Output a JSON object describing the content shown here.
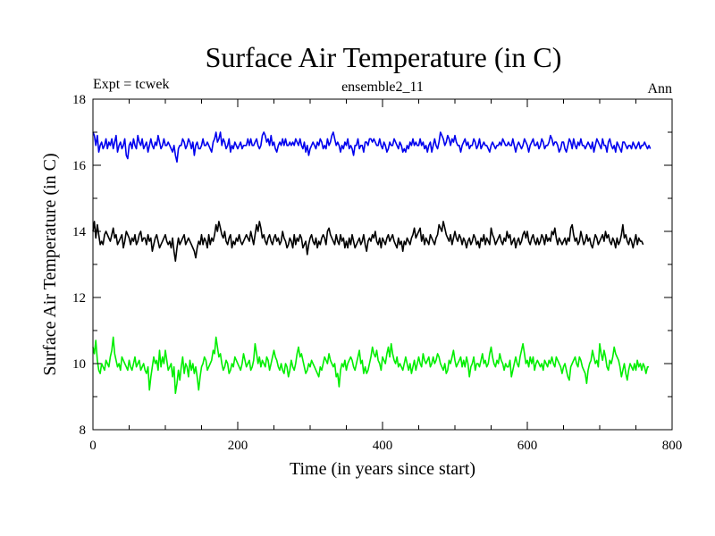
{
  "chart_data": {
    "type": "line",
    "title": "Surface Air Temperature (in C)",
    "subtitle_left": "Expt = tcwek",
    "subtitle_center": "ensemble2_11",
    "subtitle_right": "Ann",
    "xlabel": "Time (in years since start)",
    "ylabel": "Surface Air Temperature (in C)",
    "xlim": [
      0,
      800
    ],
    "ylim": [
      8,
      18
    ],
    "x_ticks": [
      0,
      200,
      400,
      600,
      800
    ],
    "y_ticks": [
      8,
      10,
      12,
      14,
      16,
      18
    ],
    "x_step": 2,
    "series": [
      {
        "name": "blue",
        "color": "#0000ee",
        "values": [
          17.0,
          16.9,
          16.6,
          16.9,
          16.4,
          16.6,
          16.7,
          16.5,
          16.6,
          16.8,
          16.5,
          16.7,
          16.6,
          16.8,
          16.5,
          16.7,
          16.9,
          16.4,
          16.6,
          16.7,
          16.5,
          16.6,
          16.8,
          16.3,
          16.2,
          16.6,
          16.7,
          16.5,
          16.8,
          16.6,
          16.5,
          16.9,
          16.7,
          16.6,
          16.8,
          16.5,
          16.6,
          16.7,
          16.4,
          16.6,
          16.8,
          16.6,
          16.5,
          16.7,
          16.6,
          16.9,
          16.7,
          16.5,
          16.6,
          16.8,
          16.6,
          16.6,
          16.7,
          16.6,
          16.5,
          16.4,
          16.6,
          16.3,
          16.1,
          16.5,
          16.6,
          16.6,
          16.8,
          16.7,
          16.5,
          16.6,
          16.8,
          16.7,
          16.5,
          16.7,
          16.3,
          16.6,
          16.7,
          16.5,
          16.5,
          16.6,
          16.8,
          16.6,
          16.6,
          16.7,
          16.6,
          16.5,
          16.4,
          16.7,
          16.8,
          17.0,
          16.7,
          16.8,
          17.0,
          16.6,
          16.8,
          16.7,
          16.5,
          16.6,
          16.8,
          16.4,
          16.6,
          16.5,
          16.7,
          16.6,
          16.5,
          16.6,
          16.7,
          16.5,
          16.6,
          16.6,
          16.6,
          16.8,
          16.6,
          16.8,
          16.6,
          16.6,
          16.7,
          16.8,
          16.6,
          16.5,
          16.6,
          16.9,
          17.0,
          16.9,
          16.7,
          16.8,
          16.6,
          16.9,
          16.6,
          16.7,
          16.5,
          16.4,
          16.6,
          16.7,
          16.6,
          16.8,
          16.6,
          16.8,
          16.6,
          16.6,
          16.7,
          16.6,
          16.7,
          16.6,
          16.8,
          16.7,
          16.6,
          16.8,
          16.6,
          16.5,
          16.7,
          16.4,
          16.6,
          16.3,
          16.5,
          16.6,
          16.7,
          16.6,
          16.5,
          16.7,
          16.6,
          16.8,
          16.7,
          16.5,
          16.6,
          16.5,
          16.8,
          16.6,
          16.7,
          16.9,
          17.0,
          16.8,
          16.6,
          16.7,
          16.6,
          16.4,
          16.6,
          16.5,
          16.7,
          16.6,
          16.8,
          16.5,
          16.6,
          16.5,
          16.3,
          16.6,
          16.6,
          16.8,
          16.5,
          16.6,
          16.6,
          16.4,
          16.7,
          16.7,
          16.6,
          16.8,
          16.8,
          16.7,
          16.8,
          16.7,
          16.6,
          16.6,
          16.8,
          16.6,
          16.5,
          16.7,
          16.6,
          16.4,
          16.5,
          16.7,
          16.6,
          16.6,
          16.8,
          16.7,
          16.6,
          16.5,
          16.7,
          16.6,
          16.4,
          16.5,
          16.4,
          16.6,
          16.5,
          16.7,
          16.6,
          16.8,
          16.6,
          16.7,
          16.6,
          16.6,
          16.8,
          16.6,
          16.7,
          16.5,
          16.6,
          16.4,
          16.6,
          16.7,
          16.4,
          16.6,
          16.8,
          16.6,
          16.5,
          16.7,
          17.0,
          16.9,
          16.8,
          16.6,
          16.7,
          16.9,
          16.8,
          16.6,
          16.8,
          16.7,
          16.9,
          16.7,
          16.6,
          16.6,
          16.4,
          16.6,
          16.7,
          16.8,
          16.6,
          16.7,
          16.5,
          16.6,
          16.6,
          16.8,
          16.7,
          16.5,
          16.6,
          16.8,
          16.5,
          16.6,
          16.7,
          16.6,
          16.6,
          16.5,
          16.4,
          16.6,
          16.7,
          16.6,
          16.5,
          16.6,
          16.6,
          16.7,
          16.6,
          16.8,
          16.7,
          16.6,
          16.6,
          16.7,
          16.6,
          16.6,
          16.8,
          16.6,
          16.4,
          16.6,
          16.7,
          16.6,
          16.5,
          16.6,
          16.8,
          16.7,
          16.6,
          16.4,
          16.6,
          16.7,
          16.8,
          16.6,
          16.6,
          16.7,
          16.5,
          16.6,
          16.8,
          16.7,
          16.5,
          16.6,
          16.6,
          16.7,
          16.9,
          16.8,
          16.6,
          16.7,
          16.7,
          16.6,
          16.4,
          16.5,
          16.7,
          16.7,
          16.5,
          16.4,
          16.6,
          16.8,
          16.7,
          16.5,
          16.8,
          16.6,
          16.5,
          16.7,
          16.6,
          16.8,
          16.6,
          16.6,
          16.5,
          16.6,
          16.7,
          16.6,
          16.5,
          16.7,
          16.4,
          16.6,
          16.8,
          16.7,
          16.6,
          16.5,
          16.8,
          16.6,
          16.6,
          16.4,
          16.7,
          16.8,
          16.6,
          16.5,
          16.6,
          16.4,
          16.7,
          16.6,
          16.5,
          16.4,
          16.7,
          16.7,
          16.6,
          16.5,
          16.6,
          16.6,
          16.5,
          16.7,
          16.6,
          16.5,
          16.6,
          16.7,
          16.5,
          16.6,
          16.6,
          16.7,
          16.6,
          16.5,
          16.6,
          16.5
        ]
      },
      {
        "name": "black",
        "color": "#000000",
        "values": [
          14.0,
          14.3,
          13.8,
          14.2,
          13.9,
          13.6,
          13.7,
          13.6,
          13.9,
          14.0,
          13.9,
          13.8,
          13.7,
          13.9,
          14.1,
          13.8,
          13.9,
          13.6,
          13.7,
          13.8,
          13.9,
          13.5,
          13.7,
          14.0,
          13.9,
          13.8,
          13.6,
          13.8,
          13.7,
          13.9,
          13.6,
          13.7,
          13.9,
          14.0,
          13.7,
          13.8,
          13.8,
          13.6,
          13.9,
          13.7,
          13.8,
          13.4,
          13.6,
          13.8,
          13.9,
          13.7,
          13.5,
          13.6,
          13.7,
          13.8,
          13.9,
          13.7,
          13.6,
          13.7,
          13.5,
          13.8,
          13.4,
          13.1,
          13.5,
          13.8,
          13.6,
          13.7,
          13.8,
          13.9,
          13.6,
          13.7,
          13.8,
          13.7,
          13.6,
          13.5,
          13.4,
          13.2,
          13.5,
          13.7,
          13.6,
          13.9,
          13.6,
          13.8,
          13.7,
          13.5,
          13.9,
          13.6,
          13.8,
          13.7,
          13.9,
          14.2,
          14.0,
          14.3,
          14.1,
          13.9,
          13.8,
          14.0,
          13.7,
          13.6,
          13.8,
          13.9,
          13.5,
          13.7,
          13.6,
          13.8,
          13.7,
          13.9,
          13.7,
          13.6,
          13.7,
          13.8,
          13.9,
          13.8,
          13.7,
          14.0,
          13.8,
          13.6,
          13.9,
          14.2,
          14.0,
          14.3,
          14.1,
          13.8,
          13.9,
          13.7,
          13.6,
          13.8,
          13.9,
          13.7,
          13.6,
          13.8,
          13.9,
          13.7,
          13.8,
          13.6,
          13.7,
          14.0,
          13.8,
          13.7,
          13.5,
          13.6,
          13.8,
          13.7,
          13.5,
          13.9,
          13.6,
          13.8,
          13.7,
          13.9,
          13.8,
          13.5,
          13.6,
          13.7,
          13.3,
          13.6,
          13.8,
          13.9,
          13.7,
          13.6,
          13.8,
          13.5,
          13.7,
          13.6,
          13.8,
          13.9,
          13.8,
          13.6,
          14.0,
          14.1,
          13.9,
          13.8,
          13.7,
          13.6,
          13.9,
          13.7,
          13.6,
          13.9,
          13.7,
          13.8,
          13.5,
          13.7,
          13.5,
          13.8,
          13.6,
          13.9,
          13.7,
          13.5,
          13.6,
          13.7,
          13.8,
          13.6,
          13.7,
          13.9,
          13.6,
          13.4,
          13.7,
          13.8,
          13.7,
          13.9,
          13.8,
          14.0,
          13.7,
          13.6,
          13.8,
          13.5,
          13.8,
          13.7,
          13.6,
          13.8,
          13.9,
          13.7,
          13.8,
          13.9,
          13.7,
          13.6,
          13.5,
          13.8,
          13.6,
          13.7,
          13.4,
          13.7,
          13.6,
          13.8,
          13.7,
          13.6,
          13.8,
          13.9,
          14.1,
          13.8,
          13.9,
          14.0,
          14.1,
          13.7,
          13.9,
          13.6,
          13.8,
          13.7,
          13.6,
          13.9,
          13.8,
          13.7,
          13.6,
          13.8,
          13.9,
          14.2,
          14.1,
          14.0,
          14.3,
          14.1,
          13.9,
          13.8,
          13.7,
          13.9,
          13.6,
          13.8,
          14.0,
          13.8,
          13.7,
          13.9,
          13.8,
          13.6,
          13.8,
          13.7,
          13.5,
          13.7,
          13.8,
          13.6,
          13.7,
          13.9,
          13.8,
          13.6,
          13.7,
          13.5,
          13.8,
          13.7,
          13.9,
          13.6,
          13.8,
          13.7,
          13.6,
          14.1,
          13.9,
          13.8,
          13.6,
          13.7,
          13.8,
          13.9,
          13.7,
          13.6,
          13.8,
          13.7,
          14.0,
          13.8,
          13.9,
          13.6,
          13.7,
          13.8,
          13.5,
          13.7,
          13.8,
          13.6,
          13.7,
          13.9,
          14.0,
          13.8,
          14.0,
          13.7,
          13.6,
          13.8,
          13.9,
          13.7,
          13.6,
          13.8,
          13.6,
          13.7,
          13.9,
          13.8,
          13.6,
          13.9,
          13.7,
          13.8,
          13.7,
          14.0,
          13.9,
          14.1,
          13.8,
          13.6,
          13.8,
          13.7,
          13.6,
          13.7,
          13.8,
          13.6,
          13.8,
          13.7,
          14.1,
          14.2,
          13.9,
          13.7,
          13.8,
          13.6,
          13.7,
          14.0,
          13.8,
          13.6,
          13.7,
          13.9,
          13.7,
          13.8,
          13.6,
          13.5,
          13.7,
          13.9,
          13.8,
          13.6,
          13.7,
          13.8,
          13.9,
          13.7,
          14.0,
          13.8,
          13.9,
          13.7,
          13.6,
          13.8,
          13.7,
          13.5,
          13.8,
          13.6,
          13.7,
          13.9,
          14.2,
          13.8,
          13.9,
          13.7,
          13.6,
          13.8,
          13.7,
          13.5,
          13.7,
          13.9,
          13.6,
          13.8,
          13.7,
          13.7,
          13.6
        ]
      },
      {
        "name": "green",
        "color": "#00ee00",
        "values": [
          10.5,
          10.3,
          10.7,
          10.1,
          9.8,
          9.7,
          10.0,
          9.9,
          9.8,
          10.1,
          10.0,
          9.9,
          10.2,
          10.4,
          10.8,
          10.3,
          10.1,
          9.9,
          10.0,
          9.8,
          10.2,
          10.1,
          10.0,
          9.9,
          9.8,
          10.1,
          9.9,
          9.8,
          10.0,
          10.2,
          9.9,
          10.0,
          10.1,
          9.8,
          9.9,
          10.0,
          9.8,
          9.7,
          9.9,
          9.2,
          9.6,
          9.9,
          10.2,
          10.0,
          10.1,
          9.8,
          10.4,
          9.9,
          10.2,
          10.0,
          10.4,
          10.1,
          9.8,
          9.9,
          10.0,
          9.6,
          9.9,
          9.1,
          9.4,
          9.8,
          9.5,
          9.9,
          10.2,
          9.7,
          10.0,
          9.9,
          9.6,
          10.1,
          9.8,
          10.0,
          9.7,
          9.9,
          9.6,
          9.2,
          9.6,
          9.9,
          10.0,
          10.2,
          10.1,
          9.8,
          9.9,
          10.0,
          10.1,
          10.4,
          10.3,
          10.8,
          10.5,
          10.2,
          10.3,
          10.0,
          9.8,
          9.9,
          10.1,
          10.0,
          9.7,
          9.8,
          10.0,
          9.9,
          10.2,
          10.1,
          10.0,
          9.9,
          9.8,
          10.0,
          10.3,
          10.1,
          9.9,
          10.0,
          10.1,
          9.8,
          9.9,
          10.1,
          10.6,
          10.3,
          10.0,
          10.2,
          9.9,
          10.1,
          10.0,
          9.9,
          10.2,
          10.1,
          9.8,
          10.0,
          10.2,
          10.4,
          10.2,
          10.1,
          9.9,
          9.8,
          10.0,
          9.8,
          9.7,
          10.0,
          9.9,
          9.6,
          9.8,
          10.1,
          9.9,
          9.8,
          10.0,
          10.3,
          10.5,
          10.2,
          10.3,
          10.1,
          9.9,
          9.7,
          9.8,
          10.0,
          9.9,
          10.1,
          10.0,
          9.9,
          9.8,
          9.7,
          9.6,
          9.9,
          9.8,
          10.0,
          10.2,
          10.1,
          10.0,
          10.3,
          10.1,
          10.0,
          9.9,
          10.0,
          9.6,
          9.7,
          9.3,
          9.8,
          10.0,
          9.9,
          10.1,
          9.8,
          10.0,
          10.1,
          10.2,
          10.1,
          9.9,
          9.8,
          10.0,
          10.2,
          10.4,
          10.0,
          10.1,
          9.7,
          9.9,
          9.7,
          9.8,
          10.0,
          10.2,
          10.5,
          10.3,
          10.2,
          10.4,
          10.1,
          10.0,
          9.8,
          10.2,
          10.1,
          10.0,
          10.3,
          10.5,
          10.2,
          10.6,
          10.3,
          10.1,
          10.0,
          10.2,
          9.9,
          10.0,
          9.9,
          9.8,
          10.0,
          10.2,
          10.0,
          9.8,
          10.0,
          9.7,
          9.9,
          10.1,
          9.8,
          10.0,
          10.2,
          10.0,
          9.9,
          10.3,
          10.1,
          10.0,
          10.1,
          10.2,
          9.9,
          10.0,
          10.2,
          10.0,
          10.1,
          10.3,
          10.2,
          10.0,
          9.9,
          9.8,
          10.0,
          9.7,
          9.8,
          10.1,
          10.0,
          10.2,
          10.4,
          10.1,
          9.9,
          10.0,
          10.1,
          10.2,
          9.9,
          10.1,
          9.9,
          10.2,
          10.0,
          9.6,
          9.9,
          10.0,
          10.2,
          9.8,
          10.0,
          10.0,
          9.9,
          10.1,
          10.3,
          10.0,
          10.1,
          9.9,
          10.0,
          10.3,
          10.5,
          10.2,
          10.0,
          9.9,
          10.1,
          10.0,
          10.3,
          10.1,
          10.0,
          9.8,
          10.0,
          9.9,
          9.9,
          10.1,
          9.6,
          9.8,
          10.0,
          10.2,
          10.0,
          9.9,
          10.2,
          10.4,
          10.6,
          10.3,
          10.0,
          10.1,
          9.9,
          10.2,
          10.0,
          10.2,
          9.8,
          10.0,
          10.1,
          10.0,
          9.9,
          10.0,
          9.8,
          10.1,
          10.0,
          9.9,
          10.1,
          10.0,
          10.2,
          10.0,
          9.9,
          10.2,
          10.1,
          10.0,
          9.9,
          9.7,
          9.9,
          10.0,
          9.8,
          9.6,
          9.5,
          9.9,
          10.0,
          10.1,
          10.2,
          10.0,
          9.9,
          10.2,
          10.1,
          9.9,
          9.8,
          9.7,
          9.4,
          9.8,
          10.0,
          10.1,
          10.4,
          10.2,
          10.0,
          10.1,
          9.9,
          10.6,
          10.3,
          10.1,
          10.4,
          10.2,
          9.9,
          9.8,
          10.1,
          10.0,
          10.2,
          10.5,
          10.3,
          10.2,
          10.1,
          9.9,
          9.6,
          9.8,
          10.0,
          9.7,
          9.5,
          9.8,
          10.0,
          9.9,
          9.8,
          10.0,
          9.8,
          10.1,
          9.9,
          10.0,
          9.8,
          10.0,
          9.9,
          9.7,
          9.9,
          9.9
        ]
      }
    ]
  }
}
